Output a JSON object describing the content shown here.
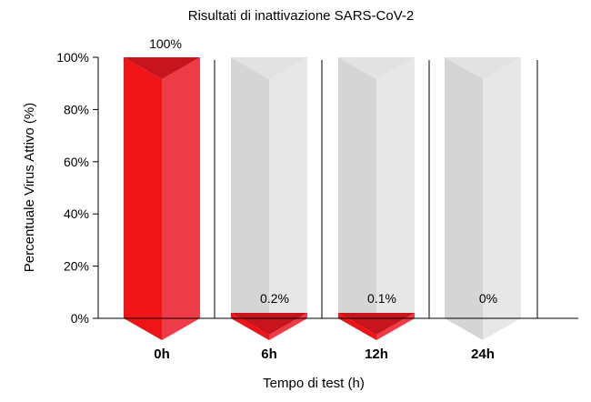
{
  "chart_data": {
    "type": "bar",
    "title": "Risultati di inattivazione SARS-CoV-2",
    "xlabel": "Tempo di test (h)",
    "ylabel": "Percentuale Virus Attivo (%)",
    "categories": [
      "0h",
      "6h",
      "12h",
      "24h"
    ],
    "values": [
      100,
      0.2,
      0.1,
      0
    ],
    "value_labels": [
      "100%",
      "0.2%",
      "0.1%",
      "0%"
    ],
    "ylim": [
      0,
      100
    ],
    "yticks": [
      "0%",
      "20%",
      "40%",
      "60%",
      "80%",
      "100%"
    ],
    "ytick_values": [
      0,
      20,
      40,
      60,
      80,
      100
    ],
    "grid": false,
    "colors": {
      "active_front": "#f01418",
      "active_side": "#ee3b48",
      "active_top": "#c8141c",
      "ghost_front": "#d5d5d5",
      "ghost_side": "#e7e7e7",
      "ghost_top": "#e2e2e2"
    }
  }
}
